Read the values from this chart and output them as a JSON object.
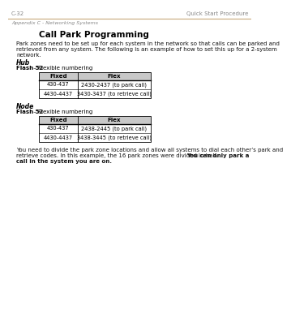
{
  "page_num": "C-32",
  "page_title_right": "Quick Start Procedure",
  "appendix_label": "Appendix C - Networking Systems",
  "section_title": "Call Park Programming",
  "intro_line1": "Park zones need to be set up for each system in the network so that calls can be parked and",
  "intro_line2": "retrieved from any system. The following is an example of how to set this up for a 2-system",
  "intro_line3": "network.",
  "hub_label": "Hub",
  "hub_flash_bold": "Flash 52",
  "hub_flash_normal": " – Flexible numbering",
  "hub_table_headers": [
    "Fixed",
    "Flex"
  ],
  "hub_table_rows": [
    [
      "430-437",
      "2430-2437 (to park call)"
    ],
    [
      "4430-4437",
      "3430-3437 (to retrieve call)"
    ]
  ],
  "node_label": "Node",
  "node_flash_bold": "Flash 52",
  "node_flash_normal": " – Flexible numbering",
  "node_table_headers": [
    "Fixed",
    "Flex"
  ],
  "node_table_rows": [
    [
      "430-437",
      "2438-2445 (to park call)"
    ],
    [
      "4430-4437",
      "3438-3445 (to retrieve call)"
    ]
  ],
  "footer_line1": "You need to divide the park zone locations and allow all systems to dial each other’s park and",
  "footer_line2_normal": "retrieve codes. In this example, the 16 park zones were divided in half. ",
  "footer_line2_bold": "You can only park a",
  "footer_line3_bold": "call in the system you are on.",
  "header_line_color": "#c8a87a",
  "table_header_bg": "#c8c8c8",
  "bg_color": "#ffffff"
}
